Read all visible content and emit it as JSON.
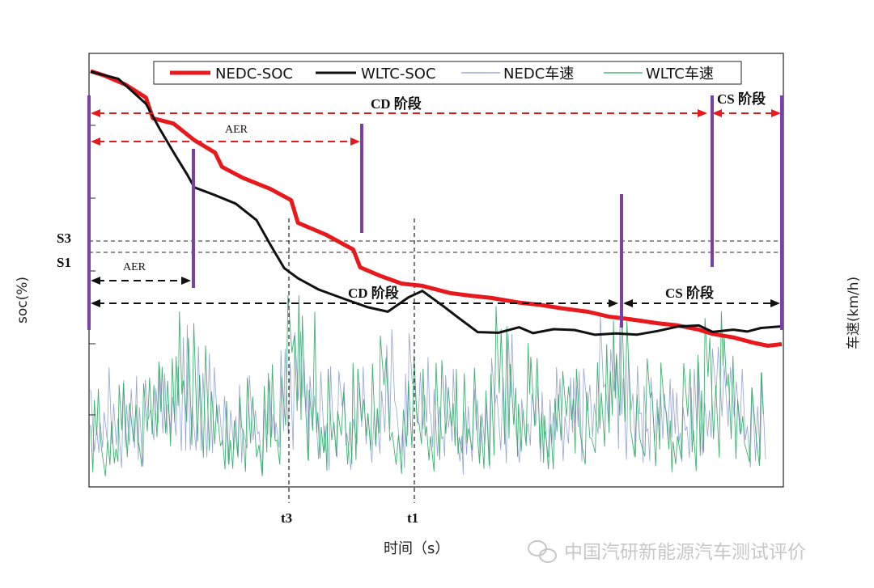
{
  "chart_data": {
    "type": "line",
    "title": "",
    "xlabel": "时间（s）",
    "ylabel_left": "soc(%)",
    "ylabel_right": "车速(km/h)",
    "x_ticks": [
      "t3",
      "t1"
    ],
    "y_ticks": [
      "S3",
      "S1"
    ],
    "legend": {
      "placement": "top",
      "entries": [
        {
          "name": "NEDC-SOC",
          "color": "#e8191c"
        },
        {
          "name": "WLTC-SOC",
          "color": "#111111"
        },
        {
          "name": "NEDC车速",
          "color": "#8a9ad0"
        },
        {
          "name": "WLTC车速",
          "color": "#2aa860"
        }
      ]
    },
    "grid": false,
    "series": [
      {
        "name": "NEDC-SOC",
        "color": "#e8191c",
        "points": [
          [
            0,
            100
          ],
          [
            2,
            99.5
          ],
          [
            5,
            98.3
          ],
          [
            8,
            96.8
          ],
          [
            9,
            94.2
          ],
          [
            12,
            93.5
          ],
          [
            15,
            91.5
          ],
          [
            18,
            89.9
          ],
          [
            19,
            88.2
          ],
          [
            22,
            86.8
          ],
          [
            26,
            85.5
          ],
          [
            29,
            84
          ],
          [
            30,
            81.2
          ],
          [
            34,
            79.8
          ],
          [
            38,
            78
          ],
          [
            39,
            75.8
          ],
          [
            42,
            74.6
          ],
          [
            45,
            73.8
          ],
          [
            48,
            73.4
          ],
          [
            52,
            72.6
          ],
          [
            55,
            72.2
          ],
          [
            58,
            72
          ],
          [
            62,
            71.4
          ],
          [
            65,
            71.1
          ],
          [
            68,
            70.7
          ],
          [
            72,
            70.2
          ],
          [
            75,
            69.7
          ],
          [
            78,
            69.3
          ],
          [
            82,
            68.9
          ],
          [
            85,
            68.5
          ],
          [
            88,
            68.1
          ],
          [
            90,
            67.5
          ],
          [
            93,
            67.1
          ],
          [
            96,
            66.4
          ],
          [
            98,
            66
          ],
          [
            100,
            66.3
          ]
        ]
      },
      {
        "name": "WLTC-SOC",
        "color": "#111111",
        "points": [
          [
            0,
            100
          ],
          [
            4,
            99
          ],
          [
            8,
            96
          ],
          [
            10,
            92.8
          ],
          [
            12,
            90
          ],
          [
            14,
            87.2
          ],
          [
            15,
            85.6
          ],
          [
            18,
            84.7
          ],
          [
            21,
            83.6
          ],
          [
            24,
            81.6
          ],
          [
            26,
            78.6
          ],
          [
            28,
            75.6
          ],
          [
            30,
            74.4
          ],
          [
            33,
            73
          ],
          [
            37,
            71.8
          ],
          [
            40,
            70.8
          ],
          [
            43,
            70.3
          ],
          [
            46,
            72
          ],
          [
            48,
            72.8
          ],
          [
            51,
            71
          ],
          [
            53,
            69.6
          ],
          [
            56,
            67.8
          ],
          [
            59,
            67.6
          ],
          [
            62,
            68.4
          ],
          [
            64,
            67.6
          ],
          [
            67,
            68.1
          ],
          [
            70,
            68
          ],
          [
            73,
            67.4
          ],
          [
            76,
            67.6
          ],
          [
            79,
            67.4
          ],
          [
            82,
            67.9
          ],
          [
            85,
            68.4
          ],
          [
            88,
            68.6
          ],
          [
            90,
            67.7
          ],
          [
            93,
            68.1
          ],
          [
            95,
            67.8
          ],
          [
            97,
            68.2
          ],
          [
            100,
            68.5
          ]
        ]
      }
    ],
    "speed_series": [
      {
        "name": "NEDC车速",
        "color": "#8a9ad0"
      },
      {
        "name": "WLTC车速",
        "color": "#2aa860"
      }
    ],
    "annotations": {
      "top_cd": "CD 阶段",
      "top_cs": "CS 阶段",
      "top_aer": "AER",
      "bottom_cd": "CD 阶段",
      "bottom_cs": "CS 阶段",
      "bottom_aer": "AER"
    }
  },
  "watermark": "中国汽研新能源汽车测试评价"
}
